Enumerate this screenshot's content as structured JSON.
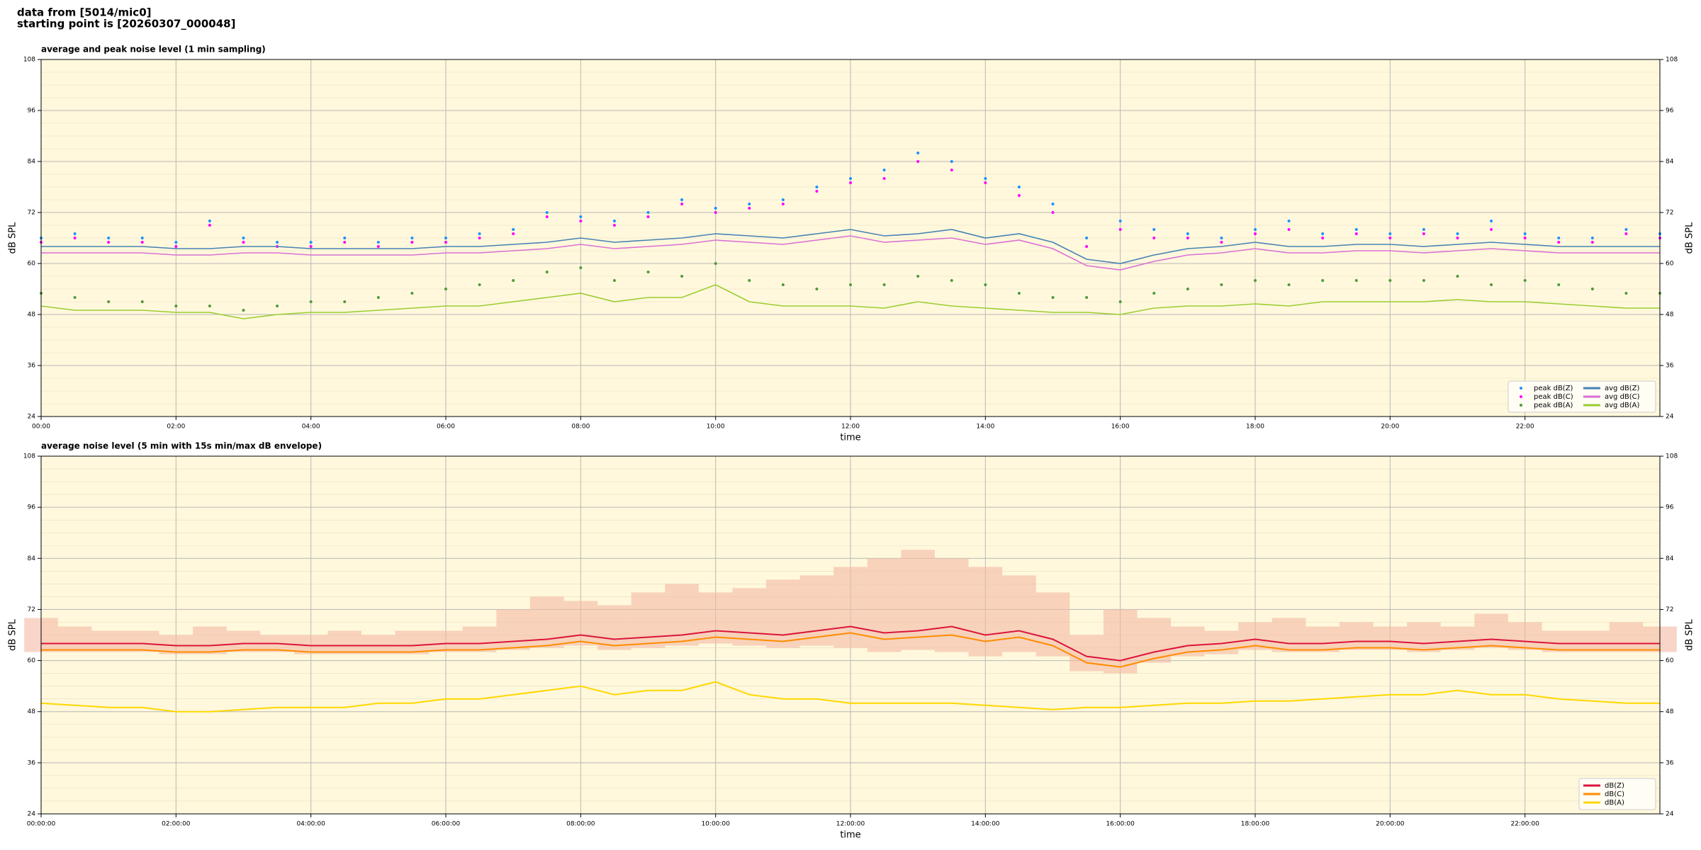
{
  "header": [
    "data from [5014/mic0]",
    "starting point is [20260307_000048]"
  ],
  "chart_data": [
    {
      "type": "line",
      "title": "average and peak noise level (1 min sampling)",
      "xlabel": "time",
      "ylabel": "dB SPL",
      "xlim": [
        0,
        24
      ],
      "ylim": [
        24,
        108
      ],
      "grid": true,
      "legend": "lower right",
      "legend_columns": 2,
      "xticks": [
        {
          "value": 0,
          "label": "00:00"
        },
        {
          "value": 2,
          "label": "02:00"
        },
        {
          "value": 4,
          "label": "04:00"
        },
        {
          "value": 6,
          "label": "06:00"
        },
        {
          "value": 8,
          "label": "08:00"
        },
        {
          "value": 10,
          "label": "10:00"
        },
        {
          "value": 12,
          "label": "12:00"
        },
        {
          "value": 14,
          "label": "14:00"
        },
        {
          "value": 16,
          "label": "16:00"
        },
        {
          "value": 18,
          "label": "18:00"
        },
        {
          "value": 20,
          "label": "20:00"
        },
        {
          "value": 22,
          "label": "22:00"
        }
      ],
      "yticks": [
        24,
        36,
        48,
        60,
        72,
        84,
        96,
        108
      ],
      "x": [
        0,
        0.5,
        1,
        1.5,
        2,
        2.5,
        3,
        3.5,
        4,
        4.5,
        5,
        5.5,
        6,
        6.5,
        7,
        7.5,
        8,
        8.5,
        9,
        9.5,
        10,
        10.5,
        11,
        11.5,
        12,
        12.5,
        13,
        13.5,
        14,
        14.5,
        15,
        15.5,
        16,
        16.5,
        17,
        17.5,
        18,
        18.5,
        19,
        19.5,
        20,
        20.5,
        21,
        21.5,
        22,
        22.5,
        23,
        23.5,
        24
      ],
      "series": [
        {
          "name": "peak dB(Z)",
          "kind": "scatter",
          "color": "#1e90ff",
          "values": [
            66,
            67,
            66,
            66,
            65,
            70,
            66,
            65,
            65,
            66,
            65,
            66,
            66,
            67,
            68,
            72,
            71,
            70,
            72,
            75,
            73,
            74,
            75,
            78,
            80,
            82,
            86,
            84,
            80,
            78,
            74,
            66,
            70,
            68,
            67,
            66,
            68,
            70,
            67,
            68,
            67,
            68,
            67,
            70,
            67,
            66,
            66,
            68,
            67
          ]
        },
        {
          "name": "peak dB(C)",
          "kind": "scatter",
          "color": "#ff00ff",
          "values": [
            65,
            66,
            65,
            65,
            64,
            69,
            65,
            64,
            64,
            65,
            64,
            65,
            65,
            66,
            67,
            71,
            70,
            69,
            71,
            74,
            72,
            73,
            74,
            77,
            79,
            80,
            84,
            82,
            79,
            76,
            72,
            64,
            68,
            66,
            66,
            65,
            67,
            68,
            66,
            67,
            66,
            67,
            66,
            68,
            66,
            65,
            65,
            67,
            66
          ]
        },
        {
          "name": "peak dB(A)",
          "kind": "scatter",
          "color": "#4f9a3a",
          "values": [
            53,
            52,
            51,
            51,
            50,
            50,
            49,
            50,
            51,
            51,
            52,
            53,
            54,
            55,
            56,
            58,
            59,
            56,
            58,
            57,
            60,
            56,
            55,
            54,
            55,
            55,
            57,
            56,
            55,
            53,
            52,
            52,
            51,
            53,
            54,
            55,
            56,
            55,
            56,
            56,
            56,
            56,
            57,
            55,
            56,
            55,
            54,
            53,
            53
          ]
        },
        {
          "name": "avg dB(Z)",
          "kind": "line",
          "color": "#4682b4",
          "values": [
            64,
            64,
            64,
            64,
            63.5,
            63.5,
            64,
            64,
            63.5,
            63.5,
            63.5,
            63.5,
            64,
            64,
            64.5,
            65,
            66,
            65,
            65.5,
            66,
            67,
            66.5,
            66,
            67,
            68,
            66.5,
            67,
            68,
            66,
            67,
            65,
            61,
            60,
            62,
            63.5,
            64,
            65,
            64,
            64,
            64.5,
            64.5,
            64,
            64.5,
            65,
            64.5,
            64,
            64,
            64,
            64
          ]
        },
        {
          "name": "avg dB(C)",
          "kind": "line",
          "color": "#da70d6",
          "values": [
            62.5,
            62.5,
            62.5,
            62.5,
            62,
            62,
            62.5,
            62.5,
            62,
            62,
            62,
            62,
            62.5,
            62.5,
            63,
            63.5,
            64.5,
            63.5,
            64,
            64.5,
            65.5,
            65,
            64.5,
            65.5,
            66.5,
            65,
            65.5,
            66,
            64.5,
            65.5,
            63.5,
            59.5,
            58.5,
            60.5,
            62,
            62.5,
            63.5,
            62.5,
            62.5,
            63,
            63,
            62.5,
            63,
            63.5,
            63,
            62.5,
            62.5,
            62.5,
            62.5
          ]
        },
        {
          "name": "avg dB(A)",
          "kind": "line",
          "color": "#9acd32",
          "values": [
            50,
            49,
            49,
            49,
            48.5,
            48.5,
            47,
            48,
            48.5,
            48.5,
            49,
            49.5,
            50,
            50,
            51,
            52,
            53,
            51,
            52,
            52,
            55,
            51,
            50,
            50,
            50,
            49.5,
            51,
            50,
            49.5,
            49,
            48.5,
            48.5,
            48,
            49.5,
            50,
            50,
            50.5,
            50,
            51,
            51,
            51,
            51,
            51.5,
            51,
            51,
            50.5,
            50,
            49.5,
            49.5
          ]
        }
      ]
    },
    {
      "type": "line",
      "title": "average noise level (5 min with 15s min/max dB envelope)",
      "xlabel": "time",
      "ylabel": "dB SPL",
      "xlim": [
        0,
        24
      ],
      "ylim": [
        24,
        108
      ],
      "grid": true,
      "legend": "lower right",
      "legend_columns": 1,
      "xticks": [
        {
          "value": 0,
          "label": "00:00:00"
        },
        {
          "value": 2,
          "label": "02:00:00"
        },
        {
          "value": 4,
          "label": "04:00:00"
        },
        {
          "value": 6,
          "label": "06:00:00"
        },
        {
          "value": 8,
          "label": "08:00:00"
        },
        {
          "value": 10,
          "label": "10:00:00"
        },
        {
          "value": 12,
          "label": "12:00:00"
        },
        {
          "value": 14,
          "label": "14:00:00"
        },
        {
          "value": 16,
          "label": "16:00:00"
        },
        {
          "value": 18,
          "label": "18:00:00"
        },
        {
          "value": 20,
          "label": "20:00:00"
        },
        {
          "value": 22,
          "label": "22:00:00"
        }
      ],
      "yticks": [
        24,
        36,
        48,
        60,
        72,
        84,
        96,
        108
      ],
      "x": [
        0,
        0.5,
        1,
        1.5,
        2,
        2.5,
        3,
        3.5,
        4,
        4.5,
        5,
        5.5,
        6,
        6.5,
        7,
        7.5,
        8,
        8.5,
        9,
        9.5,
        10,
        10.5,
        11,
        11.5,
        12,
        12.5,
        13,
        13.5,
        14,
        14.5,
        15,
        15.5,
        16,
        16.5,
        17,
        17.5,
        18,
        18.5,
        19,
        19.5,
        20,
        20.5,
        21,
        21.5,
        22,
        22.5,
        23,
        23.5,
        24
      ],
      "envelope": {
        "color": "#f4b9a4",
        "low": [
          62,
          62,
          62,
          62,
          61.5,
          61.5,
          62,
          62,
          61.5,
          61.5,
          61.5,
          61.5,
          62,
          62,
          62.5,
          63,
          63.5,
          62.5,
          63,
          63.5,
          64,
          63.5,
          63,
          63.5,
          63,
          62,
          62.5,
          62,
          61,
          62,
          61,
          57.5,
          57,
          59.5,
          61,
          61.5,
          62.5,
          62,
          62,
          62.5,
          62.5,
          62,
          62.5,
          63,
          62.5,
          62,
          62,
          62,
          62
        ],
        "high": [
          70,
          68,
          67,
          67,
          66,
          68,
          67,
          66,
          66,
          67,
          66,
          67,
          67,
          68,
          72,
          75,
          74,
          73,
          76,
          78,
          76,
          77,
          79,
          80,
          82,
          84,
          86,
          84,
          82,
          80,
          76,
          66,
          72,
          70,
          68,
          67,
          69,
          70,
          68,
          69,
          68,
          69,
          68,
          71,
          69,
          67,
          67,
          69,
          68
        ]
      },
      "series": [
        {
          "name": "dB(Z)",
          "kind": "line",
          "color": "#dc143c",
          "values": [
            64,
            64,
            64,
            64,
            63.5,
            63.5,
            64,
            64,
            63.5,
            63.5,
            63.5,
            63.5,
            64,
            64,
            64.5,
            65,
            66,
            65,
            65.5,
            66,
            67,
            66.5,
            66,
            67,
            68,
            66.5,
            67,
            68,
            66,
            67,
            65,
            61,
            60,
            62,
            63.5,
            64,
            65,
            64,
            64,
            64.5,
            64.5,
            64,
            64.5,
            65,
            64.5,
            64,
            64,
            64,
            64
          ]
        },
        {
          "name": "dB(C)",
          "kind": "line",
          "color": "#ff8c00",
          "values": [
            62.5,
            62.5,
            62.5,
            62.5,
            62,
            62,
            62.5,
            62.5,
            62,
            62,
            62,
            62,
            62.5,
            62.5,
            63,
            63.5,
            64.5,
            63.5,
            64,
            64.5,
            65.5,
            65,
            64.5,
            65.5,
            66.5,
            65,
            65.5,
            66,
            64.5,
            65.5,
            63.5,
            59.5,
            58.5,
            60.5,
            62,
            62.5,
            63.5,
            62.5,
            62.5,
            63,
            63,
            62.5,
            63,
            63.5,
            63,
            62.5,
            62.5,
            62.5,
            62.5
          ]
        },
        {
          "name": "dB(A)",
          "kind": "line",
          "color": "#ffd700",
          "values": [
            50,
            49.5,
            49,
            49,
            48,
            48,
            48.5,
            49,
            49,
            49,
            50,
            50,
            51,
            51,
            52,
            53,
            54,
            52,
            53,
            53,
            55,
            52,
            51,
            51,
            50,
            50,
            50,
            50,
            49.5,
            49,
            48.5,
            49,
            49,
            49.5,
            50,
            50,
            50.5,
            50.5,
            51,
            51.5,
            52,
            52,
            53,
            52,
            52,
            51,
            50.5,
            50,
            50
          ]
        }
      ]
    }
  ]
}
